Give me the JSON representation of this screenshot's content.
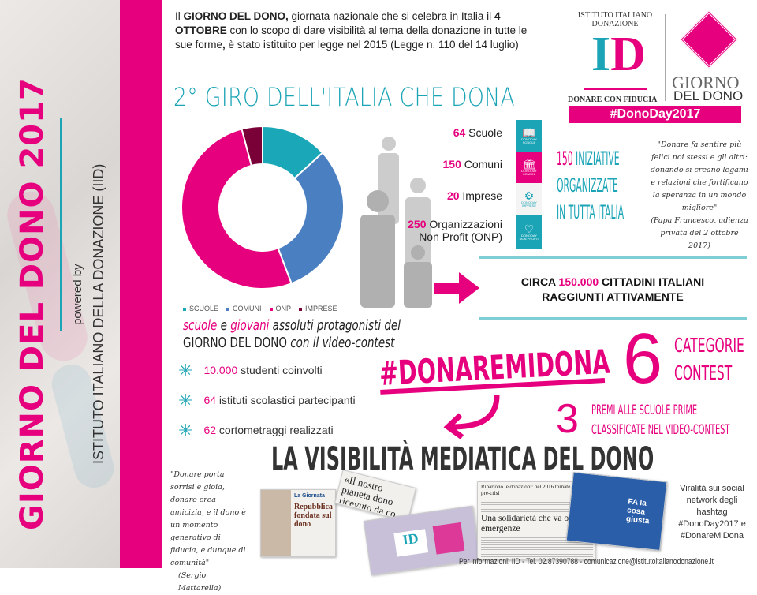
{
  "sidebar": {
    "title": "GIORNO DEL DONO 2017",
    "powered_by": "powered by",
    "org": "ISTITUTO ITALIANO DELLA DONAZIONE (IID)"
  },
  "intro": {
    "p1": "Il ",
    "b1": "GIORNO DEL DONO,",
    "p2": " giornata nazionale che si celebra in Italia il ",
    "b2": "4 OTTOBRE",
    "p3": " con lo scopo di dare visibilità al tema della donazione in tutte le sue forme",
    "b3": ",",
    "p4": " è stato istituito per legge nel 2015 (Legge n. 110 del 14 luglio)"
  },
  "heading": "2° GIRO DELL'ITALIA CHE DONA",
  "logo": {
    "arc_text": "ISTITUTO ITALIANO DONAZIONE",
    "letters": "ID",
    "tagline": "DONARE CON FIDUCIA",
    "gdd1": "GIORNO",
    "gdd2": "DEL DONO",
    "hashtag": "#DonoDay2017"
  },
  "chart_data": {
    "type": "pie",
    "donut": true,
    "series": [
      {
        "name": "SCUOLE",
        "value": 64,
        "color": "#1aa7b8"
      },
      {
        "name": "COMUNI",
        "value": 150,
        "color": "#4a7fc1"
      },
      {
        "name": "ONP",
        "value": 250,
        "color": "#e6007e"
      },
      {
        "name": "IMPRESE",
        "value": 20,
        "color": "#7a0038"
      }
    ],
    "legend": "bottom"
  },
  "stats": [
    {
      "num": "64",
      "label": " Scuole",
      "icon": "book-icon",
      "color": "#1ba4b6",
      "tag1": "DONODAY",
      "tag2": "SCUOLE"
    },
    {
      "num": "150",
      "label": " Comuni",
      "icon": "building-icon",
      "color": "#e6007e",
      "tag1": "DONODAY",
      "tag2": "COMUNI"
    },
    {
      "num": "20",
      "label": " Imprese",
      "icon": "gears-icon",
      "color": "#f4f4f4",
      "tag1": "DONODAY",
      "tag2": "IMPRESE"
    },
    {
      "num": "250",
      "label": " Organizzazioni",
      "label2": "Non Profit (ONP)",
      "icon": "heart-icon",
      "color": "#1ba4b6",
      "tag1": "DONODAY",
      "tag2": "NON PROFIT"
    }
  ],
  "iniziative": {
    "num": "150",
    "l1": " INIZIATIVE",
    "l2": "ORGANIZZATE",
    "l3": "IN TUTTA ITALIA"
  },
  "quote_pope": {
    "text": "\"Donare fa sentire più felici noi stessi e gli altri: donando si creano legami e relazioni che fortificano la speranza in un mondo migliore\"",
    "author": "(Papa Francesco, udienza privata del 2 ottobre 2017)"
  },
  "reach": {
    "pre": "CIRCA ",
    "num": "150.000",
    "post": " CITTADINI ITALIANI",
    "line2": "RAGGIUNTI ATTIVAMENTE"
  },
  "schools": {
    "w1": "scuole",
    "t1": " e ",
    "w2": "giovani",
    "t2": " assoluti protagonisti del",
    "line2a": "GIORNO DEL DONO",
    "line2b": " con il video-contest"
  },
  "bullets": [
    {
      "num": "10.000",
      "text": " studenti coinvolti"
    },
    {
      "num": "64",
      "text": " istituti scolastici partecipanti"
    },
    {
      "num": "62",
      "text": " cortometraggi realizzati"
    }
  ],
  "contest": {
    "hashtag": "#DONAREMIDONA",
    "six": "6",
    "cat1": "CATEGORIE",
    "cat2": "CONTEST",
    "three": "3",
    "prem1": "PREMI ALLE SCUOLE PRIME",
    "prem2": "CLASSIFICATE NEL VIDEO-CONTEST"
  },
  "media_title": "LA VISIBILITÀ MEDIATICA DEL DONO",
  "quote_mattarella": {
    "text": "\"Donare porta sorrisi e gioia, donare crea amicizia, e il dono è un momento generativo di fiducia, e dunque di comunità\"",
    "author": "(Sergio Mattarella)"
  },
  "clips": {
    "c1a": "La Giornata",
    "c1b": "Repubblica fondata sul dono",
    "c2": "«Il nostro pianeta dono ricevuto da co",
    "c3a": "Ripartono le donazioni: nel 2016 tornate ai livelli pre-crisi",
    "c3b": "Una solidarietà che va oltre le emergenze",
    "c4": "FA la cosa giusta"
  },
  "social": "Viralità sui social network degli hashtag #DonoDay2017 e #DonareMiDona",
  "footer": "Per informazioni: IID - Tel. 02.87390788 - comunicazione@istitutoitalianodonazione.it",
  "colors": {
    "pink": "#e6007e",
    "teal": "#1ba4b6"
  }
}
